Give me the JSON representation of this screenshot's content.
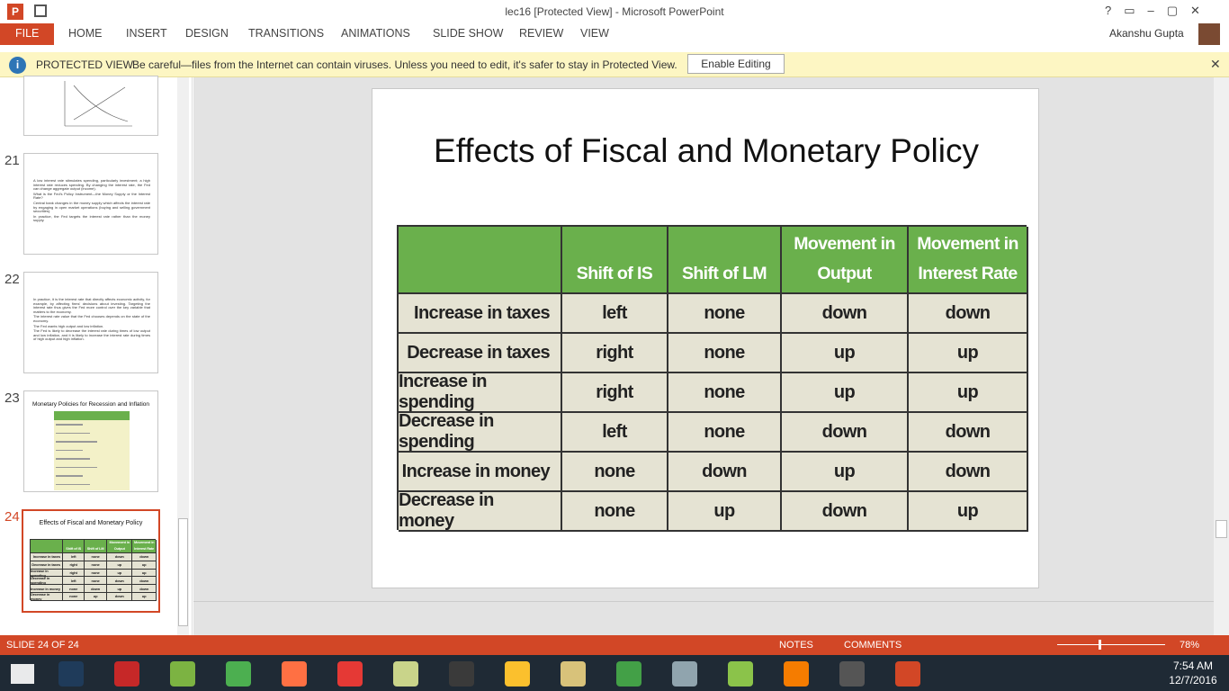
{
  "window": {
    "title": "lec16 [Protected View] - Microsoft PowerPoint",
    "user": "Akanshu Gupta"
  },
  "ribbon": {
    "tabs": [
      "FILE",
      "HOME",
      "INSERT",
      "DESIGN",
      "TRANSITIONS",
      "ANIMATIONS",
      "SLIDE SHOW",
      "REVIEW",
      "VIEW"
    ]
  },
  "protected_view": {
    "label": "PROTECTED VIEW",
    "message": "Be careful—files from the Internet can contain viruses. Unless you need to edit, it's safer to stay in Protected View.",
    "button": "Enable Editing"
  },
  "thumbnails": [
    {
      "number": "21",
      "bullets": [
        "A low interest rate stimulates spending, particularly investment; a high interest rate reduces spending. By changing the interest rate, the Fed can change aggregate output (income).",
        "What is the Fed's Policy Instrument—the Money Supply or the Interest Rate?",
        "Central bank changes in the money supply which affects the interest rate by engaging in open market operations (buying and selling government securities).",
        "In practice, the Fed targets the interest rate rather than the money supply."
      ]
    },
    {
      "number": "22",
      "bullets": [
        "In practice, it is the interest rate that directly affects economic activity, for example, by affecting firms' decisions about investing. Targeting the interest rate thus gives the Fed more control over the key variable that matters to the economy.",
        "The interest rate value that the Fed chooses depends on the state of the economy.",
        "The Fed wants high output and low inflation.",
        "The Fed is likely to decrease the interest rate during times of low output and low inflation, and it is likely to increase the interest rate during times of high output and high inflation."
      ]
    },
    {
      "number": "23",
      "title": "Monetary Policies for Recession and Inflation"
    },
    {
      "number": "24",
      "title": "Effects of Fiscal and Monetary Policy"
    }
  ],
  "slide": {
    "title": "Effects of Fiscal and Monetary Policy",
    "table": {
      "header": [
        "Shift of IS",
        "Shift of LM",
        "Movement in Output",
        "Movement in Interest Rate"
      ],
      "rows": [
        [
          "Increase in taxes",
          "left",
          "none",
          "down",
          "down"
        ],
        [
          "Decrease in taxes",
          "right",
          "none",
          "up",
          "up"
        ],
        [
          "Increase in spending",
          "right",
          "none",
          "up",
          "up"
        ],
        [
          "Decrease in spending",
          "left",
          "none",
          "down",
          "down"
        ],
        [
          "Increase in money",
          "none",
          "down",
          "up",
          "down"
        ],
        [
          "Decrease in money",
          "none",
          "up",
          "down",
          "up"
        ]
      ]
    }
  },
  "status_bar": {
    "slide": "SLIDE 24 OF 24",
    "notes": "NOTES",
    "comments": "COMMENTS",
    "zoom": "78%"
  },
  "taskbar": {
    "time": "7:54 AM",
    "date": "12/7/2016"
  }
}
